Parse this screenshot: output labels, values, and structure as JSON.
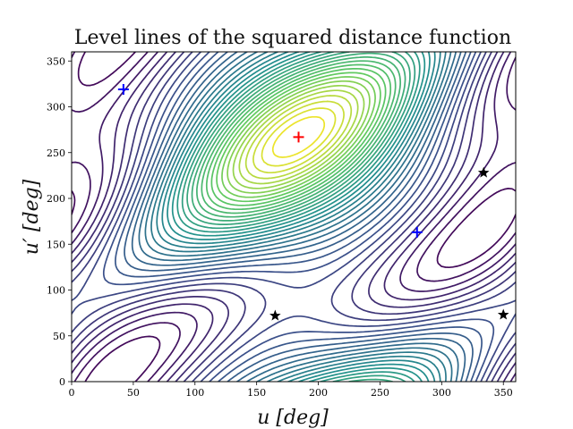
{
  "chart_data": {
    "type": "contour",
    "title": "Level lines of the squared distance function",
    "xlabel": "u [deg]",
    "ylabel": "u′ [deg]",
    "xlim": [
      0,
      360
    ],
    "ylim": [
      0,
      360
    ],
    "xticks": [
      0,
      50,
      100,
      150,
      200,
      250,
      300,
      350
    ],
    "yticks": [
      0,
      50,
      100,
      150,
      200,
      250,
      300,
      350
    ],
    "colormap": [
      "#440154",
      "#3b528b",
      "#21908d",
      "#5dc962",
      "#fde725"
    ],
    "maximum": {
      "u": 184,
      "u_prime": 267,
      "color": "#ff0000",
      "marker": "plus"
    },
    "minima": [
      {
        "u": 42,
        "u_prime": 319,
        "color": "#0000ff",
        "marker": "plus"
      },
      {
        "u": 280,
        "u_prime": 163,
        "color": "#0000ff",
        "marker": "plus"
      }
    ],
    "saddles": [
      {
        "u": 165,
        "u_prime": 72,
        "color": "#000000",
        "marker": "star"
      },
      {
        "u": 334,
        "u_prime": 228,
        "color": "#000000",
        "marker": "star"
      },
      {
        "u": 350,
        "u_prime": 73,
        "color": "#000000",
        "marker": "star"
      }
    ],
    "contour_levels": 36
  }
}
